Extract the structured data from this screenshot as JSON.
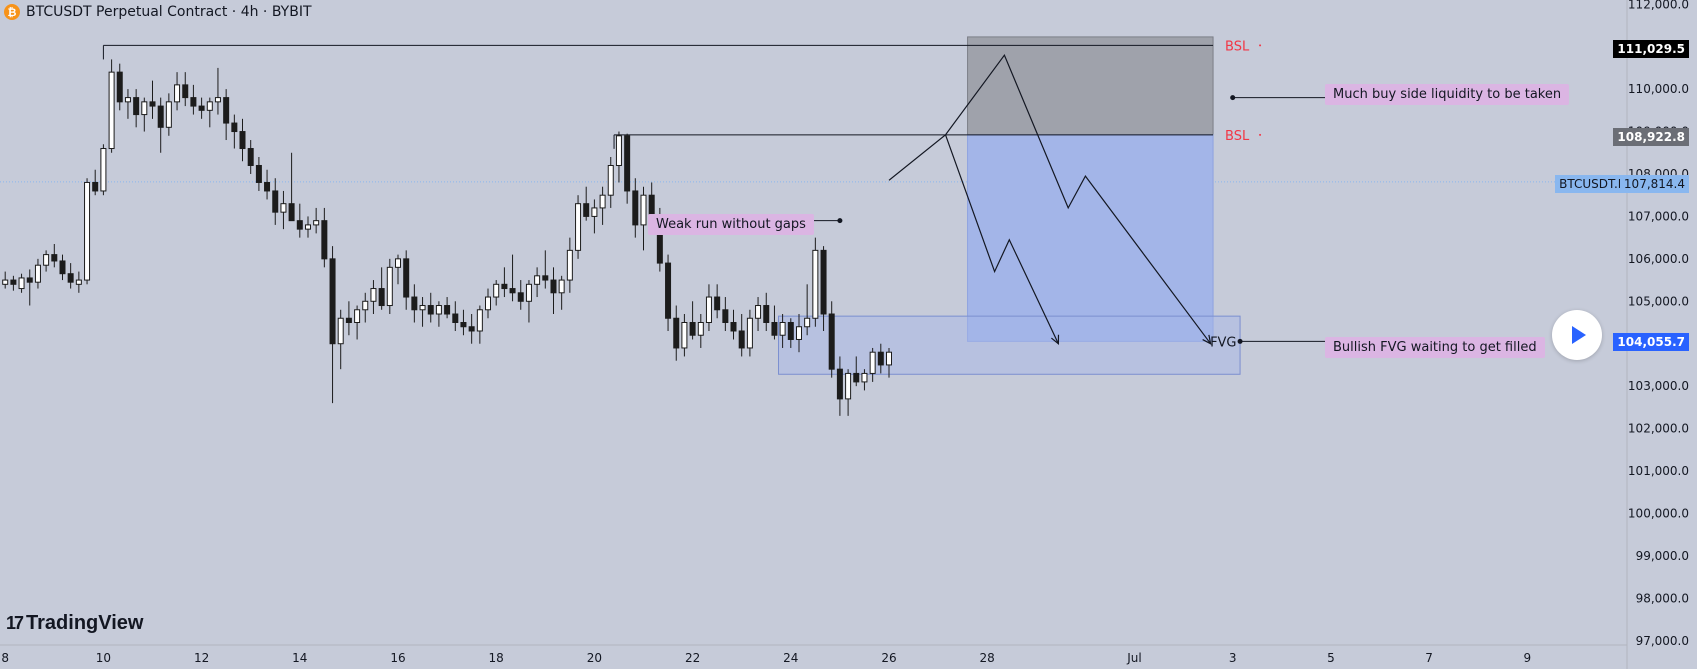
{
  "header": {
    "coin_glyph": "₿",
    "title": "BTCUSDT Perpetual Contract · 4h · BYBIT"
  },
  "branding": {
    "logo_mark": "17",
    "logo_text": "TradingView"
  },
  "annotations": {
    "weak_run": "Weak run without gaps",
    "buy_side": "Much buy side liquidity to be taken",
    "fvg_note": "Bullish FVG waiting to get filled",
    "fvg_label": "FVG",
    "bsl_label": "BSL"
  },
  "price_tags": {
    "high": "111,029.5",
    "mid": "108,922.8",
    "symbol": "BTCUSDT.P",
    "current": "107,814.4",
    "fvg": "104,055.7"
  },
  "colors": {
    "background": "#c6cbd9",
    "bsl": "#f23645",
    "note_bg": "#dbb5e3",
    "blue_zone": "#a3b5e8",
    "grey_zone": "#9fa2ab",
    "candle_up": "#ffffff",
    "candle_down": "#1c1c1c"
  },
  "chart_data": {
    "type": "candlestick",
    "title": "BTCUSDT Perpetual Contract · 4h · BYBIT",
    "x_ticks": [
      {
        "label": "8",
        "day": 8
      },
      {
        "label": "10",
        "day": 10
      },
      {
        "label": "12",
        "day": 12
      },
      {
        "label": "14",
        "day": 14
      },
      {
        "label": "16",
        "day": 16
      },
      {
        "label": "18",
        "day": 18
      },
      {
        "label": "20",
        "day": 20
      },
      {
        "label": "22",
        "day": 22
      },
      {
        "label": "24",
        "day": 24
      },
      {
        "label": "26",
        "day": 26
      },
      {
        "label": "28",
        "day": 28
      },
      {
        "label": "Jul",
        "day": 31
      },
      {
        "label": "3",
        "day": 33
      },
      {
        "label": "5",
        "day": 35
      },
      {
        "label": "7",
        "day": 37
      },
      {
        "label": "9",
        "day": 39
      }
    ],
    "y_ticks": [
      97000,
      98000,
      99000,
      100000,
      101000,
      102000,
      103000,
      104000,
      105000,
      106000,
      107000,
      108000,
      109000,
      110000,
      111000,
      112000
    ],
    "y_tick_labels": [
      "97,000.0",
      "98,000.0",
      "99,000.0",
      "100,000.0",
      "101,000.0",
      "102,000.0",
      "103,000.0",
      "104,000.0",
      "105,000.0",
      "106,000.0",
      "107,000.0",
      "108,000.0",
      "109,000.0",
      "110,000.0",
      "111,000.0",
      "112,000.0"
    ],
    "ylim": [
      96900,
      112100
    ],
    "current_price": 107814.4,
    "bsl_levels": [
      111029.5,
      108922.8
    ],
    "zones": {
      "fvg": {
        "day_start": 23.75,
        "day_end": 33.15,
        "top": 104650,
        "bottom": 103280
      },
      "sell_grey": {
        "day_start": 27.6,
        "day_end": 32.6,
        "top": 111230,
        "bottom": 108922.8
      },
      "sell_blue": {
        "day_start": 27.6,
        "day_end": 32.6,
        "top": 108922.8,
        "bottom": 104055.7
      }
    },
    "projection_1": [
      [
        26.0,
        107850
      ],
      [
        27.15,
        108922.8
      ],
      [
        28.35,
        110800
      ],
      [
        29.65,
        107200
      ],
      [
        30.0,
        107950
      ],
      [
        32.55,
        104000
      ]
    ],
    "projection_2": [
      [
        27.15,
        108922.8
      ],
      [
        28.15,
        105700
      ],
      [
        28.45,
        106450
      ],
      [
        29.45,
        104000
      ]
    ],
    "candles": [
      {
        "d": 8.0,
        "o": 105400,
        "h": 105700,
        "l": 105300,
        "c": 105500
      },
      {
        "d": 8.167,
        "o": 105500,
        "h": 105600,
        "l": 105250,
        "c": 105400
      },
      {
        "d": 8.333,
        "o": 105300,
        "h": 105650,
        "l": 105200,
        "c": 105550
      },
      {
        "d": 8.5,
        "o": 105550,
        "h": 105750,
        "l": 104900,
        "c": 105450
      },
      {
        "d": 8.667,
        "o": 105450,
        "h": 106000,
        "l": 105300,
        "c": 105850
      },
      {
        "d": 8.833,
        "o": 105850,
        "h": 106200,
        "l": 105700,
        "c": 106100
      },
      {
        "d": 9.0,
        "o": 106100,
        "h": 106350,
        "l": 105800,
        "c": 105950
      },
      {
        "d": 9.167,
        "o": 105950,
        "h": 106100,
        "l": 105500,
        "c": 105650
      },
      {
        "d": 9.333,
        "o": 105650,
        "h": 105900,
        "l": 105300,
        "c": 105450
      },
      {
        "d": 9.5,
        "o": 105400,
        "h": 105700,
        "l": 105200,
        "c": 105500
      },
      {
        "d": 9.667,
        "o": 105500,
        "h": 107900,
        "l": 105400,
        "c": 107800
      },
      {
        "d": 9.833,
        "o": 107800,
        "h": 108100,
        "l": 107500,
        "c": 107600
      },
      {
        "d": 10.0,
        "o": 107600,
        "h": 108700,
        "l": 107500,
        "c": 108600
      },
      {
        "d": 10.167,
        "o": 108600,
        "h": 110700,
        "l": 108500,
        "c": 110400
      },
      {
        "d": 10.333,
        "o": 110400,
        "h": 110600,
        "l": 109500,
        "c": 109700
      },
      {
        "d": 10.5,
        "o": 109700,
        "h": 110000,
        "l": 109300,
        "c": 109800
      },
      {
        "d": 10.667,
        "o": 109800,
        "h": 110000,
        "l": 109100,
        "c": 109400
      },
      {
        "d": 10.833,
        "o": 109400,
        "h": 109800,
        "l": 109000,
        "c": 109700
      },
      {
        "d": 11.0,
        "o": 109700,
        "h": 110200,
        "l": 109300,
        "c": 109600
      },
      {
        "d": 11.167,
        "o": 109600,
        "h": 109800,
        "l": 108500,
        "c": 109100
      },
      {
        "d": 11.333,
        "o": 109100,
        "h": 109900,
        "l": 108900,
        "c": 109700
      },
      {
        "d": 11.5,
        "o": 109700,
        "h": 110400,
        "l": 109500,
        "c": 110100
      },
      {
        "d": 11.667,
        "o": 110100,
        "h": 110400,
        "l": 109600,
        "c": 109800
      },
      {
        "d": 11.833,
        "o": 109800,
        "h": 110100,
        "l": 109400,
        "c": 109600
      },
      {
        "d": 12.0,
        "o": 109600,
        "h": 109800,
        "l": 109300,
        "c": 109500
      },
      {
        "d": 12.167,
        "o": 109500,
        "h": 109800,
        "l": 109100,
        "c": 109700
      },
      {
        "d": 12.333,
        "o": 109700,
        "h": 110500,
        "l": 109400,
        "c": 109800
      },
      {
        "d": 12.5,
        "o": 109800,
        "h": 110000,
        "l": 108800,
        "c": 109200
      },
      {
        "d": 12.667,
        "o": 109200,
        "h": 109400,
        "l": 108600,
        "c": 109000
      },
      {
        "d": 12.833,
        "o": 109000,
        "h": 109300,
        "l": 108300,
        "c": 108600
      },
      {
        "d": 13.0,
        "o": 108600,
        "h": 108800,
        "l": 108000,
        "c": 108200
      },
      {
        "d": 13.167,
        "o": 108200,
        "h": 108400,
        "l": 107600,
        "c": 107800
      },
      {
        "d": 13.333,
        "o": 107800,
        "h": 108100,
        "l": 107400,
        "c": 107600
      },
      {
        "d": 13.5,
        "o": 107600,
        "h": 107900,
        "l": 106800,
        "c": 107100
      },
      {
        "d": 13.667,
        "o": 107100,
        "h": 107600,
        "l": 106700,
        "c": 107300
      },
      {
        "d": 13.833,
        "o": 107300,
        "h": 108500,
        "l": 107000,
        "c": 106900
      },
      {
        "d": 14.0,
        "o": 106900,
        "h": 107300,
        "l": 106500,
        "c": 106700
      },
      {
        "d": 14.167,
        "o": 106700,
        "h": 107000,
        "l": 106500,
        "c": 106800
      },
      {
        "d": 14.333,
        "o": 106800,
        "h": 107200,
        "l": 106600,
        "c": 106900
      },
      {
        "d": 14.5,
        "o": 106900,
        "h": 107200,
        "l": 105800,
        "c": 106000
      },
      {
        "d": 14.667,
        "o": 106000,
        "h": 106300,
        "l": 102600,
        "c": 104000
      },
      {
        "d": 14.833,
        "o": 104000,
        "h": 104800,
        "l": 103400,
        "c": 104600
      },
      {
        "d": 15.0,
        "o": 104600,
        "h": 105000,
        "l": 104200,
        "c": 104500
      },
      {
        "d": 15.167,
        "o": 104500,
        "h": 104900,
        "l": 104100,
        "c": 104800
      },
      {
        "d": 15.333,
        "o": 104800,
        "h": 105200,
        "l": 104500,
        "c": 105000
      },
      {
        "d": 15.5,
        "o": 105000,
        "h": 105500,
        "l": 104700,
        "c": 105300
      },
      {
        "d": 15.667,
        "o": 105300,
        "h": 105800,
        "l": 104800,
        "c": 104900
      },
      {
        "d": 15.833,
        "o": 104900,
        "h": 106000,
        "l": 104700,
        "c": 105800
      },
      {
        "d": 16.0,
        "o": 105800,
        "h": 106100,
        "l": 105400,
        "c": 106000
      },
      {
        "d": 16.167,
        "o": 106000,
        "h": 106200,
        "l": 104800,
        "c": 105100
      },
      {
        "d": 16.333,
        "o": 105100,
        "h": 105400,
        "l": 104500,
        "c": 104800
      },
      {
        "d": 16.5,
        "o": 104800,
        "h": 105100,
        "l": 104400,
        "c": 104900
      },
      {
        "d": 16.667,
        "o": 104900,
        "h": 105200,
        "l": 104500,
        "c": 104700
      },
      {
        "d": 16.833,
        "o": 104700,
        "h": 105000,
        "l": 104400,
        "c": 104900
      },
      {
        "d": 17.0,
        "o": 104900,
        "h": 105100,
        "l": 104600,
        "c": 104700
      },
      {
        "d": 17.167,
        "o": 104700,
        "h": 105000,
        "l": 104300,
        "c": 104500
      },
      {
        "d": 17.333,
        "o": 104500,
        "h": 104800,
        "l": 104200,
        "c": 104400
      },
      {
        "d": 17.5,
        "o": 104400,
        "h": 104700,
        "l": 104000,
        "c": 104300
      },
      {
        "d": 17.667,
        "o": 104300,
        "h": 104900,
        "l": 104000,
        "c": 104800
      },
      {
        "d": 17.833,
        "o": 104800,
        "h": 105300,
        "l": 104600,
        "c": 105100
      },
      {
        "d": 18.0,
        "o": 105100,
        "h": 105500,
        "l": 104900,
        "c": 105400
      },
      {
        "d": 18.167,
        "o": 105400,
        "h": 105800,
        "l": 105100,
        "c": 105300
      },
      {
        "d": 18.333,
        "o": 105300,
        "h": 106100,
        "l": 105000,
        "c": 105200
      },
      {
        "d": 18.5,
        "o": 105200,
        "h": 105500,
        "l": 104800,
        "c": 105000
      },
      {
        "d": 18.667,
        "o": 105000,
        "h": 105500,
        "l": 104500,
        "c": 105400
      },
      {
        "d": 18.833,
        "o": 105400,
        "h": 105800,
        "l": 105100,
        "c": 105600
      },
      {
        "d": 19.0,
        "o": 105600,
        "h": 106200,
        "l": 105300,
        "c": 105500
      },
      {
        "d": 19.167,
        "o": 105500,
        "h": 105800,
        "l": 104700,
        "c": 105200
      },
      {
        "d": 19.333,
        "o": 105200,
        "h": 105600,
        "l": 104800,
        "c": 105500
      },
      {
        "d": 19.5,
        "o": 105500,
        "h": 106500,
        "l": 105200,
        "c": 106200
      },
      {
        "d": 19.667,
        "o": 106200,
        "h": 107500,
        "l": 106000,
        "c": 107300
      },
      {
        "d": 19.833,
        "o": 107300,
        "h": 107700,
        "l": 106900,
        "c": 107000
      },
      {
        "d": 20.0,
        "o": 107000,
        "h": 107400,
        "l": 106600,
        "c": 107200
      },
      {
        "d": 20.167,
        "o": 107200,
        "h": 107700,
        "l": 106800,
        "c": 107500
      },
      {
        "d": 20.333,
        "o": 107500,
        "h": 108400,
        "l": 107200,
        "c": 108200
      },
      {
        "d": 20.5,
        "o": 108200,
        "h": 109000,
        "l": 107800,
        "c": 108900
      },
      {
        "d": 20.667,
        "o": 108900,
        "h": 108950,
        "l": 107300,
        "c": 107600
      },
      {
        "d": 20.833,
        "o": 107600,
        "h": 107900,
        "l": 106500,
        "c": 106800
      },
      {
        "d": 21.0,
        "o": 106800,
        "h": 107700,
        "l": 106200,
        "c": 107500
      },
      {
        "d": 21.167,
        "o": 107500,
        "h": 107800,
        "l": 106700,
        "c": 106900
      },
      {
        "d": 21.333,
        "o": 106900,
        "h": 107200,
        "l": 105700,
        "c": 105900
      },
      {
        "d": 21.5,
        "o": 105900,
        "h": 106100,
        "l": 104300,
        "c": 104600
      },
      {
        "d": 21.667,
        "o": 104600,
        "h": 104900,
        "l": 103600,
        "c": 103900
      },
      {
        "d": 21.833,
        "o": 103900,
        "h": 104700,
        "l": 103700,
        "c": 104500
      },
      {
        "d": 22.0,
        "o": 104500,
        "h": 105000,
        "l": 104100,
        "c": 104200
      },
      {
        "d": 22.167,
        "o": 104200,
        "h": 104700,
        "l": 103900,
        "c": 104500
      },
      {
        "d": 22.333,
        "o": 104500,
        "h": 105400,
        "l": 104300,
        "c": 105100
      },
      {
        "d": 22.5,
        "o": 105100,
        "h": 105400,
        "l": 104600,
        "c": 104800
      },
      {
        "d": 22.667,
        "o": 104800,
        "h": 105100,
        "l": 104300,
        "c": 104500
      },
      {
        "d": 22.833,
        "o": 104500,
        "h": 104800,
        "l": 104100,
        "c": 104300
      },
      {
        "d": 23.0,
        "o": 104300,
        "h": 104700,
        "l": 103700,
        "c": 103900
      },
      {
        "d": 23.167,
        "o": 103900,
        "h": 104800,
        "l": 103700,
        "c": 104600
      },
      {
        "d": 23.333,
        "o": 104600,
        "h": 105100,
        "l": 104300,
        "c": 104900
      },
      {
        "d": 23.5,
        "o": 104900,
        "h": 105200,
        "l": 104300,
        "c": 104500
      },
      {
        "d": 23.667,
        "o": 104500,
        "h": 104900,
        "l": 104100,
        "c": 104200
      },
      {
        "d": 23.833,
        "o": 104200,
        "h": 104700,
        "l": 103900,
        "c": 104500
      },
      {
        "d": 24.0,
        "o": 104500,
        "h": 104600,
        "l": 103900,
        "c": 104100
      },
      {
        "d": 24.167,
        "o": 104100,
        "h": 104700,
        "l": 103800,
        "c": 104400
      },
      {
        "d": 24.333,
        "o": 104400,
        "h": 105400,
        "l": 104200,
        "c": 104600
      },
      {
        "d": 24.5,
        "o": 104600,
        "h": 106500,
        "l": 104400,
        "c": 106200
      },
      {
        "d": 24.667,
        "o": 106200,
        "h": 106300,
        "l": 104300,
        "c": 104700
      },
      {
        "d": 24.833,
        "o": 104700,
        "h": 105000,
        "l": 103200,
        "c": 103400
      },
      {
        "d": 25.0,
        "o": 103400,
        "h": 103700,
        "l": 102300,
        "c": 102700
      },
      {
        "d": 25.167,
        "o": 102700,
        "h": 103400,
        "l": 102300,
        "c": 103300
      },
      {
        "d": 25.333,
        "o": 103300,
        "h": 103700,
        "l": 103000,
        "c": 103100
      },
      {
        "d": 25.5,
        "o": 103100,
        "h": 103400,
        "l": 102900,
        "c": 103300
      },
      {
        "d": 25.667,
        "o": 103300,
        "h": 103900,
        "l": 103100,
        "c": 103800
      },
      {
        "d": 25.833,
        "o": 103800,
        "h": 104000,
        "l": 103300,
        "c": 103500
      },
      {
        "d": 26.0,
        "o": 103500,
        "h": 103900,
        "l": 103200,
        "c": 103800
      }
    ]
  }
}
